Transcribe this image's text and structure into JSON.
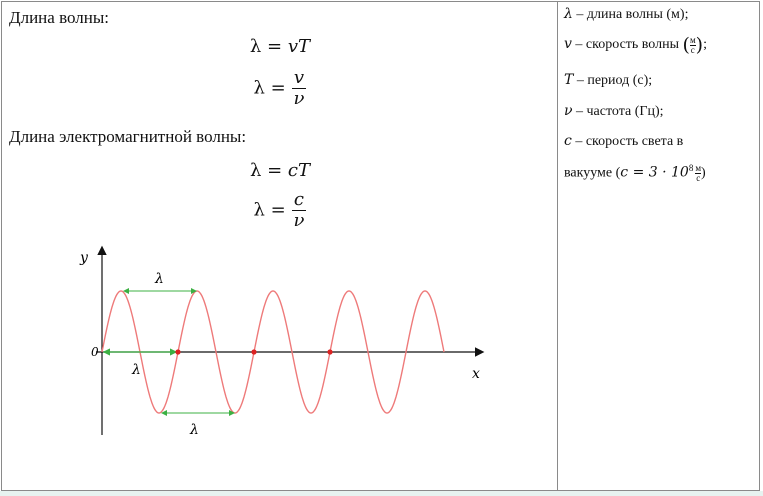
{
  "left": {
    "heading1": "Длина волны:",
    "formula1": {
      "lhs": "λ =",
      "rhs": "vT"
    },
    "formula2": {
      "lhs": "λ =",
      "num": "v",
      "den": "ν"
    },
    "heading2": "Длина электромагнитной волны:",
    "formula3": {
      "lhs": "λ =",
      "rhs": "cT"
    },
    "formula4": {
      "lhs": "λ =",
      "num": "c",
      "den": "ν"
    }
  },
  "legend": {
    "l1": {
      "sym": "λ",
      "text": " – длина волны (м);"
    },
    "l2": {
      "sym": "v",
      "text": " – скорость волны ",
      "unit_num": "м",
      "unit_den": "с",
      "tail": ";"
    },
    "l3": {
      "sym": "T",
      "text": " – период (с);"
    },
    "l4": {
      "sym": "ν",
      "text": " – частота (Гц);"
    },
    "l5": {
      "sym": "c",
      "text": " – скорость света в"
    },
    "l6": {
      "text": "вакууме (",
      "expr": "c = 3 · 10",
      "exp": "8",
      "unit_num": "м",
      "unit_den": "с",
      "tail": ")"
    }
  },
  "graph": {
    "y_label": "y",
    "x_label": "x",
    "origin_label": "0",
    "lambda_top": "λ",
    "lambda_axis": "λ",
    "lambda_bottom": "λ",
    "colors": {
      "wave": "#ee7a7a",
      "arrow": "#3cb043",
      "axis": "#111111",
      "node": "#dd2222"
    }
  }
}
